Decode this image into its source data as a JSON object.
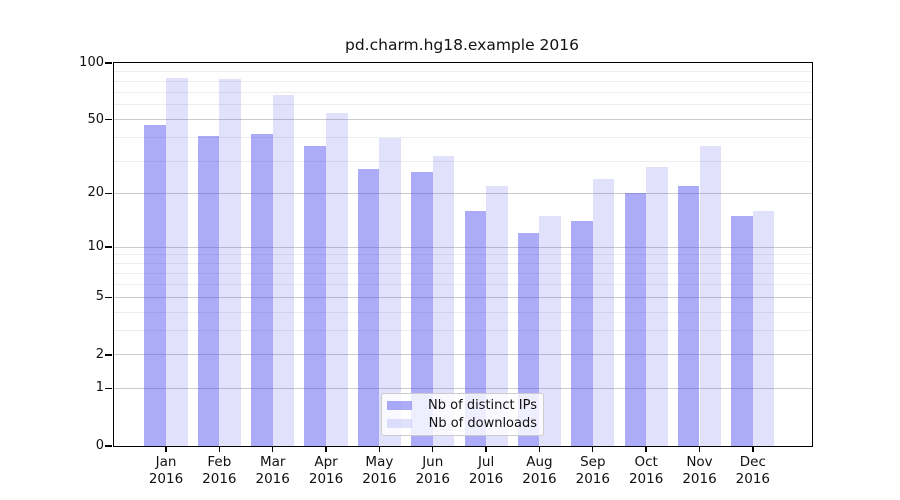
{
  "title": "pd.charm.hg18.example 2016",
  "chart_data": {
    "type": "bar",
    "categories": [
      "Jan",
      "Feb",
      "Mar",
      "Apr",
      "May",
      "Jun",
      "Jul",
      "Aug",
      "Sep",
      "Oct",
      "Nov",
      "Dec"
    ],
    "year": "2016",
    "series": [
      {
        "name": "Nb of distinct IPs",
        "key": "ips",
        "color": "rgba(80,80,240,0.48)",
        "values": [
          47,
          41,
          42,
          36,
          27,
          26,
          16,
          12,
          14,
          20,
          22,
          15
        ]
      },
      {
        "name": "Nb of downloads",
        "key": "downloads",
        "color": "rgba(80,80,240,0.17)",
        "values": [
          83,
          82,
          68,
          54,
          40,
          32,
          22,
          15,
          24,
          28,
          36,
          16
        ]
      }
    ],
    "y_scale": "log1p",
    "ylim": [
      0,
      100
    ],
    "y_ticks": [
      0,
      1,
      2,
      5,
      10,
      20,
      50,
      100
    ],
    "y_minor_gridlines": [
      3,
      4,
      6,
      7,
      8,
      9,
      30,
      40,
      60,
      70,
      80,
      90
    ],
    "grid": true,
    "legend_position": "lower center",
    "colors": {
      "axis": "#000000",
      "grid_major": "#cccccc",
      "grid_minor": "#ececec",
      "text": "#111111"
    }
  }
}
